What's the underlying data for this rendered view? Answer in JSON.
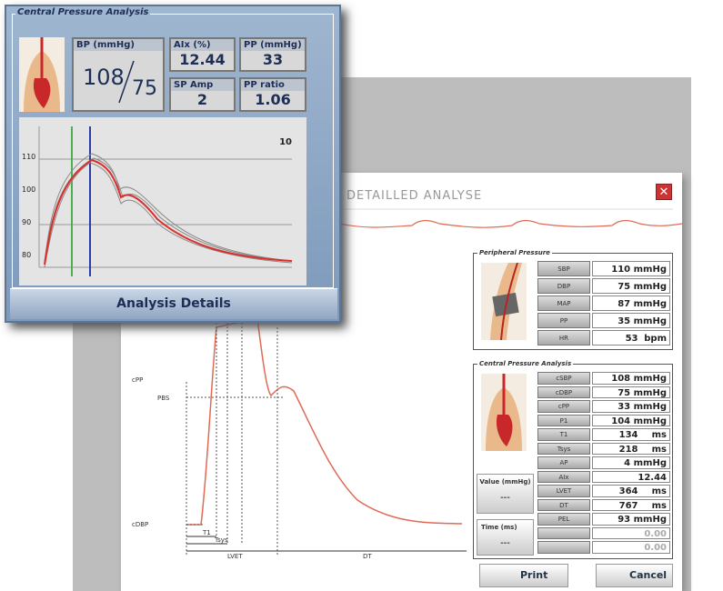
{
  "front_panel": {
    "title": "Central Pressure Analysis",
    "bp": {
      "label": "BP (mmHg)",
      "systolic": "108",
      "diastolic": "75"
    },
    "aix": {
      "label": "AIx (%)",
      "value": "12.44"
    },
    "pp": {
      "label": "PP (mmHg)",
      "value": "33"
    },
    "sp_amp": {
      "label": "SP Amp",
      "value": "2"
    },
    "pp_ratio": {
      "label": "PP ratio",
      "value": "1.06"
    },
    "chart": {
      "yticks": [
        "110",
        "100",
        "90",
        "80"
      ],
      "count": "10"
    },
    "button": "Analysis Details"
  },
  "window": {
    "title": "DETAILLED ANALYSE",
    "peripheral": {
      "title": "Peripheral Pressure",
      "rows": [
        {
          "label": "SBP",
          "value": "110",
          "unit": "mmHg"
        },
        {
          "label": "DBP",
          "value": "75",
          "unit": "mmHg"
        },
        {
          "label": "MAP",
          "value": "87",
          "unit": "mmHg"
        },
        {
          "label": "PP",
          "value": "35",
          "unit": "mmHg"
        },
        {
          "label": "HR",
          "value": "53",
          "unit": "bpm"
        }
      ]
    },
    "central": {
      "title": "Central Pressure Analysis",
      "rows": [
        {
          "label": "cSBP",
          "value": "108",
          "unit": "mmHg"
        },
        {
          "label": "cDBP",
          "value": "75",
          "unit": "mmHg"
        },
        {
          "label": "cPP",
          "value": "33",
          "unit": "mmHg"
        },
        {
          "label": "P1",
          "value": "104",
          "unit": "mmHg"
        },
        {
          "label": "T1",
          "value": "134",
          "unit": "ms"
        },
        {
          "label": "Tsys",
          "value": "218",
          "unit": "ms"
        },
        {
          "label": "AP",
          "value": "4",
          "unit": "mmHg"
        },
        {
          "label": "AIx",
          "value": "12.44"
        },
        {
          "label": "LVET",
          "value": "364",
          "unit": "ms"
        },
        {
          "label": "DT",
          "value": "767",
          "unit": "ms"
        },
        {
          "label": "PEL",
          "value": "93",
          "unit": "mmHg"
        },
        {
          "value": "0.00"
        },
        {
          "value": "0.00"
        }
      ]
    },
    "value_box": {
      "label": "Value (mmHg)",
      "value": "---"
    },
    "time_box": {
      "label": "Time (ms)",
      "value": "---"
    },
    "waveform_labels": {
      "cpp": "cPP",
      "pbs": "PBS",
      "cdbp": "cDBP",
      "t1": "T1",
      "tsys": "Tsys",
      "lvet": "LVET",
      "dt": "DT"
    },
    "buttons": {
      "print": "Print",
      "cancel": "Cancel"
    }
  }
}
